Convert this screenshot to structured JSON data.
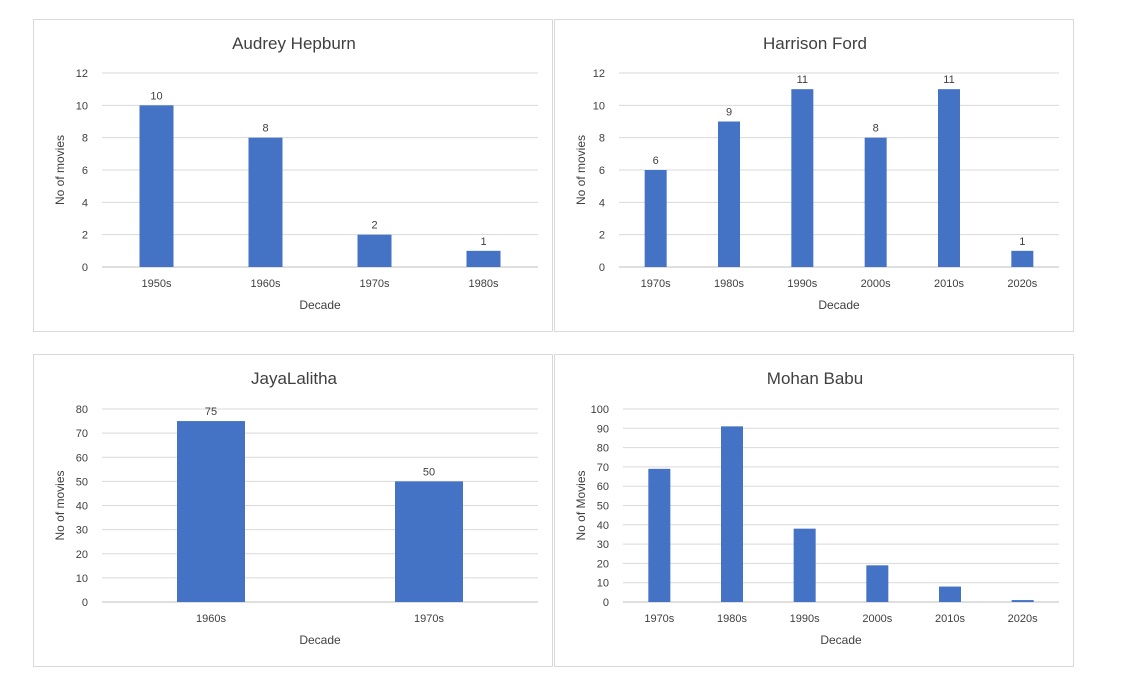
{
  "chart_data": [
    {
      "type": "bar",
      "title": "Audrey Hepburn",
      "xlabel": "Decade",
      "ylabel": "No of movies",
      "categories": [
        "1950s",
        "1960s",
        "1970s",
        "1980s"
      ],
      "values": [
        10,
        8,
        2,
        1
      ],
      "data_labels": [
        "10",
        "8",
        "2",
        "1"
      ],
      "ylim": [
        0,
        12
      ],
      "yticks": [
        0,
        2,
        4,
        6,
        8,
        10,
        12
      ],
      "grid": true,
      "color": "#4472c4"
    },
    {
      "type": "bar",
      "title": "Harrison Ford",
      "xlabel": "Decade",
      "ylabel": "No of movies",
      "categories": [
        "1970s",
        "1980s",
        "1990s",
        "2000s",
        "2010s",
        "2020s"
      ],
      "values": [
        6,
        9,
        11,
        8,
        11,
        1
      ],
      "data_labels": [
        "6",
        "9",
        "11",
        "8",
        "11",
        "1"
      ],
      "ylim": [
        0,
        12
      ],
      "yticks": [
        0,
        2,
        4,
        6,
        8,
        10,
        12
      ],
      "grid": true,
      "color": "#4472c4"
    },
    {
      "type": "bar",
      "title": "JayaLalitha",
      "xlabel": "Decade",
      "ylabel": "No of movies",
      "categories": [
        "1960s",
        "1970s"
      ],
      "values": [
        75,
        50
      ],
      "data_labels": [
        "75",
        "50"
      ],
      "ylim": [
        0,
        80
      ],
      "yticks": [
        0,
        10,
        20,
        30,
        40,
        50,
        60,
        70,
        80
      ],
      "grid": true,
      "color": "#4472c4"
    },
    {
      "type": "bar",
      "title": "Mohan Babu",
      "xlabel": "Decade",
      "ylabel": "No of Movies",
      "categories": [
        "1970s",
        "1980s",
        "1990s",
        "2000s",
        "2010s",
        "2020s"
      ],
      "values": [
        69,
        91,
        38,
        19,
        8,
        1
      ],
      "data_labels": [],
      "ylim": [
        0,
        100
      ],
      "yticks": [
        0,
        10,
        20,
        30,
        40,
        50,
        60,
        70,
        80,
        90,
        100
      ],
      "grid": true,
      "color": "#4472c4"
    }
  ]
}
